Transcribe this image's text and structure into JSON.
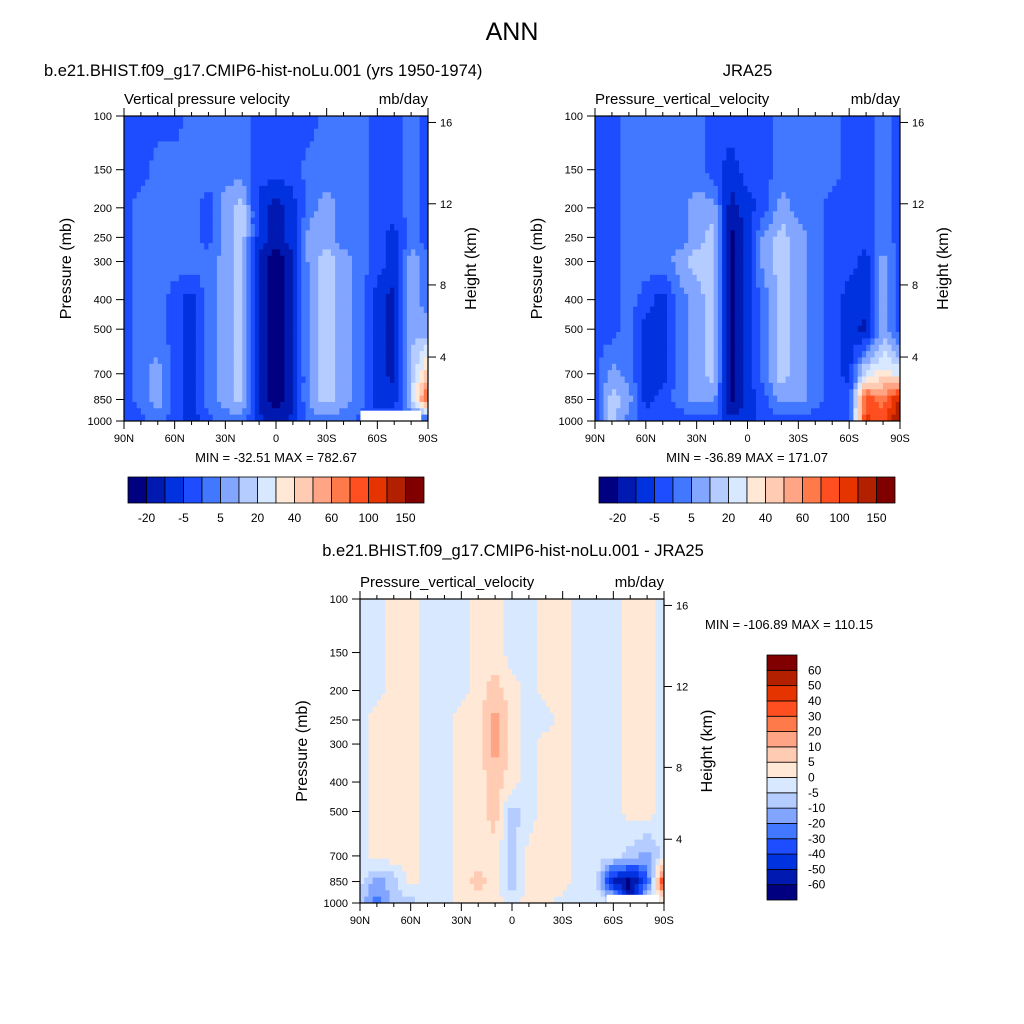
{
  "page_title": "ANN",
  "chart_data": [
    {
      "type": "heatmap",
      "title": "b.e21.BHIST.f09_g17.CMIP6-hist-noLu.001 (yrs 1950-1974)",
      "left_string": "Vertical pressure velocity",
      "right_string": "mb/day",
      "ylabel": "Pressure (mb)",
      "ylabel_right": "Height (km)",
      "min_max": "MIN = -32.51  MAX = 782.67",
      "x_ticks": [
        {
          "label": "90N",
          "lat": 90
        },
        {
          "label": "60N",
          "lat": 60
        },
        {
          "label": "30N",
          "lat": 30
        },
        {
          "label": "0",
          "lat": 0
        },
        {
          "label": "30S",
          "lat": -30
        },
        {
          "label": "60S",
          "lat": -60
        },
        {
          "label": "90S",
          "lat": -90
        }
      ],
      "y_ticks": [
        {
          "label": "100",
          "p": 100
        },
        {
          "label": "150",
          "p": 150
        },
        {
          "label": "200",
          "p": 200
        },
        {
          "label": "250",
          "p": 250
        },
        {
          "label": "300",
          "p": 300
        },
        {
          "label": "400",
          "p": 400
        },
        {
          "label": "500",
          "p": 500
        },
        {
          "label": "700",
          "p": 700
        },
        {
          "label": "850",
          "p": 850
        },
        {
          "label": "1000",
          "p": 1000
        }
      ],
      "height_ticks": [
        {
          "label": "16",
          "p": 105
        },
        {
          "label": "12",
          "p": 194
        },
        {
          "label": "8",
          "p": 358
        },
        {
          "label": "4",
          "p": 617
        }
      ],
      "ylim": [
        1000,
        100
      ],
      "xlim": [
        90,
        -90
      ],
      "lats": [
        90,
        80,
        70,
        60,
        50,
        40,
        30,
        20,
        10,
        0,
        -10,
        -20,
        -30,
        -40,
        -50,
        -60,
        -70,
        -80,
        -90
      ],
      "pressure_levels": [
        100,
        150,
        200,
        250,
        300,
        400,
        500,
        700,
        850,
        1000
      ],
      "field_bins": [
        [
          3,
          3,
          3,
          3,
          4,
          4,
          4,
          4,
          3,
          3,
          3,
          3,
          4,
          4,
          4,
          3,
          3,
          4,
          3
        ],
        [
          3,
          3,
          4,
          4,
          4,
          4,
          4,
          4,
          3,
          3,
          3,
          4,
          4,
          4,
          4,
          3,
          3,
          4,
          3
        ],
        [
          3,
          4,
          4,
          4,
          4,
          3,
          5,
          6,
          2,
          1,
          2,
          4,
          5,
          4,
          4,
          3,
          3,
          4,
          3
        ],
        [
          3,
          4,
          4,
          4,
          4,
          3,
          5,
          6,
          2,
          1,
          2,
          5,
          5,
          4,
          4,
          3,
          2,
          4,
          3
        ],
        [
          3,
          4,
          4,
          4,
          4,
          4,
          5,
          6,
          1,
          0,
          1,
          5,
          6,
          5,
          4,
          3,
          2,
          5,
          4
        ],
        [
          3,
          4,
          4,
          3,
          2,
          4,
          5,
          6,
          1,
          0,
          1,
          5,
          6,
          5,
          4,
          2,
          1,
          5,
          4
        ],
        [
          3,
          4,
          4,
          3,
          2,
          4,
          5,
          6,
          1,
          0,
          1,
          5,
          6,
          5,
          4,
          2,
          1,
          5,
          5
        ],
        [
          3,
          4,
          5,
          3,
          2,
          4,
          5,
          6,
          1,
          0,
          1,
          5,
          6,
          5,
          4,
          2,
          1,
          6,
          9
        ],
        [
          3,
          4,
          5,
          3,
          2,
          4,
          5,
          6,
          1,
          0,
          1,
          5,
          6,
          5,
          4,
          2,
          2,
          6,
          12
        ],
        [
          3,
          3,
          4,
          3,
          2,
          3,
          4,
          4,
          2,
          1,
          2,
          4,
          4,
          4,
          3,
          3,
          3,
          3,
          3
        ]
      ],
      "missing": [
        {
          "lat": [
            -50,
            -86
          ],
          "p": [
            925,
            1000
          ]
        }
      ],
      "colorbar": {
        "orientation": "horizontal",
        "colors": [
          "#000080",
          "#0019b0",
          "#0032e0",
          "#1e4cff",
          "#4178ff",
          "#82a5ff",
          "#b4ccff",
          "#d8e8ff",
          "#ffe8d6",
          "#ffcbb3",
          "#ffa484",
          "#ff7a4a",
          "#ff4f20",
          "#e63400",
          "#b22000",
          "#800000"
        ],
        "labels": [
          "-20",
          "-5",
          "5",
          "20",
          "40",
          "60",
          "100",
          "150"
        ]
      }
    },
    {
      "type": "heatmap",
      "title": "JRA25",
      "left_string": "Pressure_vertical_velocity",
      "right_string": "mb/day",
      "ylabel": "Pressure (mb)",
      "ylabel_right": "Height (km)",
      "min_max": "MIN = -36.89  MAX = 171.07",
      "x_ticks": [
        {
          "label": "90N",
          "lat": 90
        },
        {
          "label": "60N",
          "lat": 60
        },
        {
          "label": "30N",
          "lat": 30
        },
        {
          "label": "0",
          "lat": 0
        },
        {
          "label": "30S",
          "lat": -30
        },
        {
          "label": "60S",
          "lat": -60
        },
        {
          "label": "90S",
          "lat": -90
        }
      ],
      "y_ticks": [
        {
          "label": "100",
          "p": 100
        },
        {
          "label": "150",
          "p": 150
        },
        {
          "label": "200",
          "p": 200
        },
        {
          "label": "250",
          "p": 250
        },
        {
          "label": "300",
          "p": 300
        },
        {
          "label": "400",
          "p": 400
        },
        {
          "label": "500",
          "p": 500
        },
        {
          "label": "700",
          "p": 700
        },
        {
          "label": "850",
          "p": 850
        },
        {
          "label": "1000",
          "p": 1000
        }
      ],
      "height_ticks": [
        {
          "label": "16",
          "p": 105
        },
        {
          "label": "12",
          "p": 194
        },
        {
          "label": "8",
          "p": 358
        },
        {
          "label": "4",
          "p": 617
        }
      ],
      "ylim": [
        1000,
        100
      ],
      "xlim": [
        90,
        -90
      ],
      "lats": [
        90,
        80,
        70,
        60,
        50,
        40,
        30,
        20,
        10,
        0,
        -10,
        -20,
        -30,
        -40,
        -50,
        -60,
        -70,
        -80,
        -90
      ],
      "pressure_levels": [
        100,
        150,
        200,
        250,
        300,
        400,
        500,
        700,
        850,
        1000
      ],
      "field_bins": [
        [
          3,
          3,
          4,
          4,
          4,
          4,
          4,
          3,
          3,
          3,
          3,
          4,
          4,
          4,
          4,
          3,
          3,
          4,
          3
        ],
        [
          3,
          3,
          4,
          4,
          4,
          4,
          4,
          3,
          2,
          3,
          3,
          4,
          4,
          4,
          4,
          3,
          3,
          4,
          3
        ],
        [
          3,
          3,
          4,
          4,
          4,
          4,
          5,
          5,
          1,
          2,
          3,
          5,
          4,
          4,
          3,
          3,
          3,
          4,
          3
        ],
        [
          3,
          3,
          4,
          4,
          4,
          4,
          5,
          6,
          0,
          2,
          5,
          6,
          5,
          4,
          3,
          3,
          3,
          4,
          3
        ],
        [
          3,
          3,
          4,
          4,
          4,
          5,
          6,
          6,
          0,
          2,
          5,
          6,
          5,
          4,
          3,
          3,
          2,
          5,
          3
        ],
        [
          3,
          3,
          4,
          3,
          2,
          4,
          5,
          6,
          0,
          2,
          4,
          6,
          5,
          4,
          3,
          2,
          2,
          5,
          3
        ],
        [
          3,
          3,
          4,
          2,
          2,
          4,
          5,
          6,
          0,
          2,
          4,
          6,
          5,
          4,
          3,
          2,
          1,
          5,
          3
        ],
        [
          3,
          5,
          4,
          2,
          2,
          4,
          5,
          6,
          0,
          2,
          4,
          6,
          5,
          4,
          3,
          2,
          7,
          8,
          7
        ],
        [
          3,
          6,
          5,
          2,
          3,
          4,
          5,
          5,
          0,
          2,
          3,
          5,
          5,
          4,
          3,
          3,
          12,
          11,
          14
        ],
        [
          3,
          6,
          4,
          3,
          3,
          3,
          3,
          3,
          2,
          2,
          3,
          3,
          3,
          3,
          3,
          3,
          13,
          12,
          15
        ]
      ],
      "missing": [],
      "colorbar": {
        "orientation": "horizontal",
        "colors": [
          "#000080",
          "#0019b0",
          "#0032e0",
          "#1e4cff",
          "#4178ff",
          "#82a5ff",
          "#b4ccff",
          "#d8e8ff",
          "#ffe8d6",
          "#ffcbb3",
          "#ffa484",
          "#ff7a4a",
          "#ff4f20",
          "#e63400",
          "#b22000",
          "#800000"
        ],
        "labels": [
          "-20",
          "-5",
          "5",
          "20",
          "40",
          "60",
          "100",
          "150"
        ]
      }
    },
    {
      "type": "heatmap",
      "title": "b.e21.BHIST.f09_g17.CMIP6-hist-noLu.001 - JRA25",
      "left_string": "Pressure_vertical_velocity",
      "right_string": "mb/day",
      "ylabel": "Pressure (mb)",
      "ylabel_right": "Height (km)",
      "min_max": "MIN = -106.89  MAX = 110.15",
      "x_ticks": [
        {
          "label": "90N",
          "lat": 90
        },
        {
          "label": "60N",
          "lat": 60
        },
        {
          "label": "30N",
          "lat": 30
        },
        {
          "label": "0",
          "lat": 0
        },
        {
          "label": "30S",
          "lat": -30
        },
        {
          "label": "60S",
          "lat": -60
        },
        {
          "label": "90S",
          "lat": -90
        }
      ],
      "y_ticks": [
        {
          "label": "100",
          "p": 100
        },
        {
          "label": "150",
          "p": 150
        },
        {
          "label": "200",
          "p": 200
        },
        {
          "label": "250",
          "p": 250
        },
        {
          "label": "300",
          "p": 300
        },
        {
          "label": "400",
          "p": 400
        },
        {
          "label": "500",
          "p": 500
        },
        {
          "label": "700",
          "p": 700
        },
        {
          "label": "850",
          "p": 850
        },
        {
          "label": "1000",
          "p": 1000
        }
      ],
      "height_ticks": [
        {
          "label": "16",
          "p": 105
        },
        {
          "label": "12",
          "p": 194
        },
        {
          "label": "8",
          "p": 358
        },
        {
          "label": "4",
          "p": 617
        }
      ],
      "ylim": [
        1000,
        100
      ],
      "xlim": [
        90,
        -90
      ],
      "lats": [
        90,
        80,
        70,
        60,
        50,
        40,
        30,
        20,
        10,
        0,
        -10,
        -20,
        -30,
        -40,
        -50,
        -60,
        -70,
        -80,
        -90
      ],
      "pressure_levels": [
        100,
        150,
        200,
        250,
        300,
        400,
        500,
        700,
        850,
        1000
      ],
      "field_bins": [
        [
          7,
          7,
          8,
          8,
          7,
          7,
          7,
          8,
          8,
          7,
          7,
          8,
          8,
          7,
          7,
          7,
          8,
          8,
          7
        ],
        [
          7,
          7,
          8,
          8,
          7,
          7,
          7,
          8,
          8,
          7,
          7,
          8,
          8,
          7,
          7,
          7,
          8,
          8,
          7
        ],
        [
          7,
          7,
          8,
          8,
          7,
          7,
          7,
          8,
          9,
          8,
          7,
          8,
          8,
          7,
          7,
          7,
          8,
          8,
          7
        ],
        [
          7,
          8,
          8,
          8,
          7,
          7,
          8,
          8,
          10,
          8,
          7,
          7,
          8,
          7,
          7,
          7,
          8,
          8,
          7
        ],
        [
          7,
          8,
          8,
          8,
          7,
          7,
          8,
          8,
          10,
          8,
          7,
          8,
          8,
          7,
          7,
          7,
          8,
          8,
          7
        ],
        [
          7,
          8,
          8,
          8,
          7,
          7,
          8,
          8,
          9,
          8,
          7,
          8,
          8,
          7,
          7,
          7,
          8,
          8,
          7
        ],
        [
          7,
          8,
          8,
          8,
          7,
          7,
          8,
          8,
          9,
          6,
          7,
          8,
          8,
          7,
          7,
          7,
          8,
          8,
          7
        ],
        [
          7,
          8,
          8,
          8,
          7,
          7,
          8,
          8,
          8,
          6,
          8,
          8,
          8,
          7,
          7,
          7,
          6,
          5,
          7
        ],
        [
          7,
          5,
          6,
          8,
          7,
          7,
          8,
          9,
          8,
          6,
          8,
          8,
          8,
          7,
          7,
          1,
          0,
          3,
          13
        ],
        [
          6,
          4,
          6,
          6,
          7,
          7,
          8,
          8,
          8,
          7,
          8,
          8,
          7,
          7,
          7,
          7,
          0,
          7,
          7
        ]
      ],
      "missing": [
        {
          "lat": [
            -56,
            -87
          ],
          "p": [
            940,
            1000
          ]
        }
      ],
      "colorbar": {
        "orientation": "vertical",
        "colors": [
          "#000080",
          "#0019b0",
          "#0032e0",
          "#1e4cff",
          "#4178ff",
          "#82a5ff",
          "#b4ccff",
          "#d8e8ff",
          "#ffe8d6",
          "#ffcbb3",
          "#ffa484",
          "#ff7a4a",
          "#ff4f20",
          "#e63400",
          "#b22000",
          "#800000"
        ],
        "labels": [
          "-60",
          "-50",
          "-40",
          "-30",
          "-20",
          "-10",
          "-5",
          "0",
          "5",
          "10",
          "20",
          "30",
          "40",
          "50",
          "60"
        ]
      }
    }
  ]
}
